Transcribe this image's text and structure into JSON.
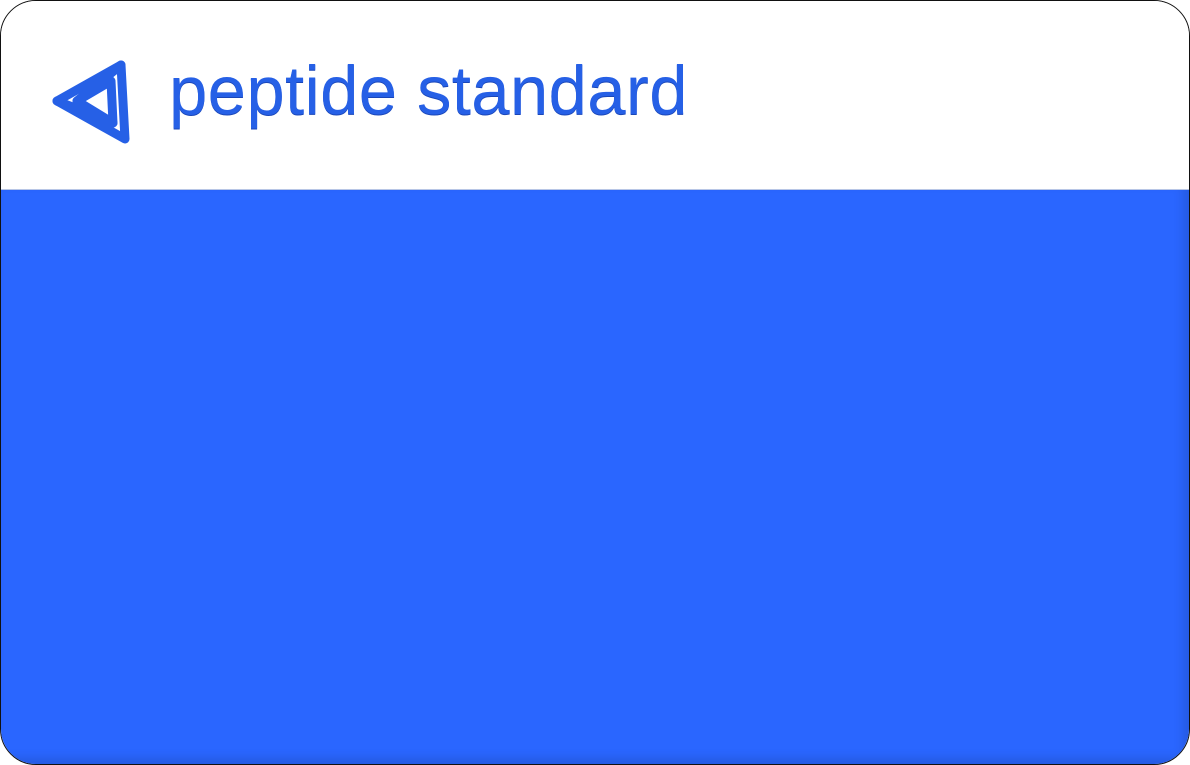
{
  "brand": {
    "name": "peptide standard",
    "logo_icon": "triangle-knot-icon",
    "text_color": "#2660e6"
  },
  "panel": {
    "background_color": "#2a66ff"
  }
}
